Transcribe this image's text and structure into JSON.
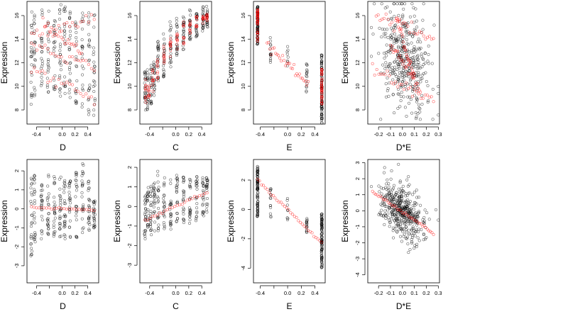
{
  "chart_data": [
    {
      "type": "scatter",
      "panel": "top-1",
      "xlabel": "D",
      "ylabel": "Expression",
      "xlim": [
        -0.55,
        0.57
      ],
      "ylim": [
        6.8,
        17.2
      ],
      "xticks": [
        -0.4,
        -0.2,
        0.0,
        0.2,
        0.4
      ],
      "xtick_labels": [
        "-0.4",
        "",
        "0.0",
        "0.2",
        "0.4"
      ],
      "yticks": [
        8,
        10,
        12,
        14,
        16
      ],
      "ytick_labels": [
        "8",
        "10",
        "12",
        "14",
        "16"
      ],
      "series": [
        {
          "color": "#000000",
          "gen": {
            "kind": "cols",
            "x": [
              -0.48,
              -0.43,
              -0.32,
              -0.22,
              -0.12,
              -0.03,
              0.04,
              0.12,
              0.22,
              0.32,
              0.42,
              0.5
            ],
            "lo": [
              8,
              9,
              9.5,
              9.5,
              9,
              9,
              9,
              9,
              8.5,
              8,
              7.5,
              7.5
            ],
            "hi": [
              16.5,
              16.5,
              16.5,
              16.5,
              16.5,
              17,
              17,
              16.5,
              16.5,
              16.5,
              16.5,
              16.5
            ],
            "n": 22,
            "jx": 0.012,
            "seed": 11
          }
        },
        {
          "color": "#ff0000",
          "gen": {
            "kind": "lines",
            "lines": [
              {
                "x0": -0.48,
                "x1": 0.5,
                "y0": 14.2,
                "y1": 15.8
              },
              {
                "x0": -0.48,
                "x1": 0.5,
                "y0": 11.5,
                "y1": 8.9
              },
              {
                "x0": -0.48,
                "x1": 0.5,
                "y0": 13.6,
                "y1": 11.5
              },
              {
                "x0": -0.3,
                "x1": 0.3,
                "y0": 15.3,
                "y1": 13.0
              }
            ],
            "n": 24,
            "jitter": 0.22,
            "seed": 12
          }
        }
      ]
    },
    {
      "type": "scatter",
      "panel": "top-2",
      "xlabel": "C",
      "ylabel": "Expression",
      "xlim": [
        -0.55,
        0.55
      ],
      "ylim": [
        6.8,
        17.2
      ],
      "xticks": [
        -0.4,
        -0.2,
        0.0,
        0.2,
        0.4
      ],
      "xtick_labels": [
        "-0.4",
        "",
        "0.0",
        "0.2",
        "0.4"
      ],
      "yticks": [
        8,
        10,
        12,
        14,
        16
      ],
      "ytick_labels": [
        "8",
        "10",
        "12",
        "14",
        "16"
      ],
      "series": [
        {
          "color": "#000000",
          "gen": {
            "kind": "cols",
            "x": [
              -0.47,
              -0.43,
              -0.38,
              -0.33,
              -0.27,
              -0.18,
              -0.08,
              0.02,
              0.12,
              0.22,
              0.32,
              0.42,
              0.48
            ],
            "lo": [
              7.8,
              8,
              8.5,
              9,
              10,
              10.5,
              11.5,
              12.5,
              13,
              13.5,
              14,
              14.5,
              15
            ],
            "hi": [
              11.5,
              11.5,
              12,
              12.5,
              14,
              14.5,
              15.5,
              16,
              16,
              16.5,
              16.5,
              16.8,
              16.8
            ],
            "n": 22,
            "jx": 0.01,
            "seed": 21
          }
        },
        {
          "color": "#ff0000",
          "gen": {
            "kind": "cols",
            "x": [
              -0.46,
              -0.41,
              -0.35,
              -0.28,
              -0.18,
              -0.08,
              0.02,
              0.12,
              0.22,
              0.32,
              0.42,
              0.48
            ],
            "lo": [
              8.6,
              9,
              9.5,
              10.5,
              11.5,
              12.5,
              13,
              13.5,
              14.5,
              15,
              15,
              15.4
            ],
            "hi": [
              10.8,
              11.2,
              11.8,
              12.5,
              13.5,
              14.5,
              15,
              15.5,
              15.8,
              16,
              16,
              16.2
            ],
            "n": 10,
            "jx": 0.006,
            "seed": 22
          }
        }
      ]
    },
    {
      "type": "scatter",
      "panel": "top-3",
      "xlabel": "E",
      "ylabel": "Expression",
      "xlim": [
        -0.5,
        0.55
      ],
      "ylim": [
        6.8,
        17.2
      ],
      "xticks": [
        -0.4,
        -0.2,
        0.0,
        0.2,
        0.4
      ],
      "xtick_labels": [
        "-0.4",
        "",
        "0.0",
        "0.2",
        "0.4"
      ],
      "yticks": [
        8,
        10,
        12,
        14,
        16
      ],
      "ytick_labels": [
        "8",
        "10",
        "12",
        "14",
        "16"
      ],
      "series": [
        {
          "color": "#000000",
          "gen": {
            "kind": "cols",
            "x": [
              -0.44,
              -0.25,
              0.0,
              0.28,
              0.5
            ],
            "lo": [
              13.5,
              12,
              11.5,
              9.5,
              6.8
            ],
            "hi": [
              16.8,
              14.5,
              14.2,
              12,
              12.8
            ],
            "n": [
              90,
              14,
              8,
              16,
              100
            ],
            "jx": 0.006,
            "seed": 31
          }
        },
        {
          "color": "#ff0000",
          "gen": {
            "kind": "lines",
            "lines": [
              {
                "x0": -0.3,
                "x1": 0.3,
                "y0": 13.6,
                "y1": 10.2
              }
            ],
            "n": 30,
            "jitter": 0.2,
            "seed": 32
          }
        },
        {
          "color": "#ff0000",
          "gen": {
            "kind": "cols",
            "x": [
              -0.44,
              0.5
            ],
            "lo": [
              13.8,
              8.5
            ],
            "hi": [
              16.5,
              11.5
            ],
            "n": [
              40,
              40
            ],
            "jx": 0.002,
            "seed": 33
          }
        }
      ]
    },
    {
      "type": "scatter",
      "panel": "top-4",
      "xlabel": "D*E",
      "ylabel": "Expression",
      "xlim": [
        -0.29,
        0.31
      ],
      "ylim": [
        6.8,
        17.2
      ],
      "xticks": [
        -0.2,
        -0.1,
        0.0,
        0.1,
        0.2,
        0.3
      ],
      "xtick_labels": [
        "-0.2",
        "-0.1",
        "0.0",
        "0.1",
        "0.2",
        "0.3"
      ],
      "yticks": [
        8,
        10,
        12,
        14,
        16
      ],
      "ytick_labels": [
        "8",
        "10",
        "12",
        "14",
        "16"
      ],
      "series": [
        {
          "color": "#000000",
          "gen": {
            "kind": "cloud",
            "cx": 0.02,
            "cy": 12.5,
            "sx": 0.1,
            "sy": 2.4,
            "slope": -5,
            "n": 380,
            "xlim": [
              -0.26,
              0.3
            ],
            "ylim": [
              7.2,
              17.0
            ],
            "seed": 41
          }
        },
        {
          "color": "#ff0000",
          "gen": {
            "kind": "lines",
            "lines": [
              {
                "x0": -0.22,
                "x1": 0.26,
                "y0": 16.2,
                "y1": 14.0
              },
              {
                "x0": -0.25,
                "x1": 0.26,
                "y0": 11.4,
                "y1": 8.8
              },
              {
                "x0": -0.05,
                "x1": 0.1,
                "y0": 15.8,
                "y1": 10.6
              },
              {
                "x0": -0.1,
                "x1": 0.15,
                "y0": 13.6,
                "y1": 9.8
              }
            ],
            "n": 30,
            "jitter": 0.25,
            "seed": 42
          }
        }
      ]
    },
    {
      "type": "scatter",
      "panel": "bottom-1",
      "xlabel": "D",
      "ylabel": "Expression",
      "xlim": [
        -0.55,
        0.57
      ],
      "ylim": [
        -3.9,
        2.6
      ],
      "xticks": [
        -0.4,
        -0.2,
        0.0,
        0.2,
        0.4
      ],
      "xtick_labels": [
        "-0.4",
        "",
        "0.0",
        "0.2",
        "0.4"
      ],
      "yticks": [
        -3,
        -2,
        -1,
        0,
        1,
        2
      ],
      "ytick_labels": [
        "-3",
        "-2",
        "-1",
        "0",
        "1",
        "2"
      ],
      "series": [
        {
          "color": "#000000",
          "gen": {
            "kind": "cols",
            "x": [
              -0.48,
              -0.43,
              -0.32,
              -0.22,
              -0.12,
              -0.03,
              0.04,
              0.12,
              0.22,
              0.32,
              0.42,
              0.5
            ],
            "lo": [
              -2.8,
              -1.8,
              -1.6,
              -1.5,
              -1.6,
              -1.5,
              -1.6,
              -1.5,
              -1.6,
              -1.4,
              -1.2,
              -1.0
            ],
            "hi": [
              1.7,
              1.8,
              1.6,
              2.0,
              1.8,
              1.8,
              1.5,
              1.5,
              2.0,
              2.4,
              1.5,
              0.6
            ],
            "n": 24,
            "jx": 0.012,
            "seed": 51
          }
        },
        {
          "color": "#ff0000",
          "gen": {
            "kind": "lines",
            "lines": [
              {
                "x0": -0.48,
                "x1": 0.5,
                "y0": 0.08,
                "y1": -0.05
              }
            ],
            "n": 26,
            "jitter": 0.02,
            "seed": 52
          }
        }
      ]
    },
    {
      "type": "scatter",
      "panel": "bottom-2",
      "xlabel": "C",
      "ylabel": "Expression",
      "xlim": [
        -0.55,
        0.55
      ],
      "ylim": [
        -3.9,
        2.4
      ],
      "xticks": [
        -0.4,
        -0.2,
        0.0,
        0.2,
        0.4
      ],
      "xtick_labels": [
        "-0.4",
        "",
        "0.0",
        "0.2",
        "0.4"
      ],
      "yticks": [
        -3,
        -2,
        -1,
        0,
        1,
        2
      ],
      "ytick_labels": [
        "-3",
        "-2",
        "-1",
        "0",
        "1",
        "2"
      ],
      "series": [
        {
          "color": "#000000",
          "gen": {
            "kind": "cols",
            "x": [
              -0.47,
              -0.43,
              -0.38,
              -0.33,
              -0.27,
              -0.18,
              -0.08,
              0.02,
              0.12,
              0.22,
              0.32,
              0.42,
              0.48
            ],
            "lo": [
              -1.8,
              -1.6,
              -1.5,
              -1.4,
              -1.3,
              -1.3,
              -1.2,
              -1.0,
              -1.0,
              -0.9,
              -0.8,
              -0.5,
              -0.4
            ],
            "hi": [
              0.9,
              1.0,
              1.1,
              1.2,
              1.9,
              1.7,
              1.5,
              1.6,
              1.6,
              1.5,
              1.6,
              1.5,
              1.5
            ],
            "n": 22,
            "jx": 0.01,
            "seed": 61
          }
        },
        {
          "color": "#ff0000",
          "gen": {
            "kind": "lines",
            "lines": [
              {
                "x0": -0.47,
                "x1": 0.48,
                "y0": -0.7,
                "y1": 0.72
              }
            ],
            "n": 26,
            "jitter": 0.04,
            "seed": 62
          }
        }
      ]
    },
    {
      "type": "scatter",
      "panel": "bottom-3",
      "xlabel": "E",
      "ylabel": "Expression",
      "xlim": [
        -0.5,
        0.55
      ],
      "ylim": [
        -5.0,
        3.4
      ],
      "xticks": [
        -0.4,
        -0.2,
        0.0,
        0.2,
        0.4
      ],
      "xtick_labels": [
        "-0.4",
        "",
        "0.0",
        "0.2",
        "0.4"
      ],
      "yticks": [
        -4,
        -2,
        0,
        2
      ],
      "ytick_labels": [
        "-4",
        "-2",
        "0",
        "2"
      ],
      "series": [
        {
          "color": "#000000",
          "gen": {
            "kind": "cols",
            "x": [
              -0.44,
              -0.25,
              0.0,
              0.28,
              0.5
            ],
            "lo": [
              -0.5,
              -0.6,
              -0.8,
              -1.6,
              -4.0
            ],
            "hi": [
              3.0,
              1.5,
              0.8,
              -0.5,
              -0.3
            ],
            "n": [
              90,
              14,
              8,
              16,
              100
            ],
            "jx": 0.006,
            "seed": 71
          }
        },
        {
          "color": "#ff0000",
          "gen": {
            "kind": "lines",
            "lines": [
              {
                "x0": -0.44,
                "x1": 0.5,
                "y0": 2.0,
                "y1": -2.3
              }
            ],
            "n": 34,
            "jitter": 0.06,
            "seed": 72
          }
        }
      ]
    },
    {
      "type": "scatter",
      "panel": "bottom-4",
      "xlabel": "D*E",
      "ylabel": "Expression",
      "xlim": [
        -0.29,
        0.31
      ],
      "ylim": [
        -4.5,
        3.2
      ],
      "xticks": [
        -0.2,
        -0.1,
        0.0,
        0.1,
        0.2,
        0.3
      ],
      "xtick_labels": [
        "-0.2",
        "-0.1",
        "0.0",
        "0.1",
        "0.2",
        "0.3"
      ],
      "yticks": [
        -4,
        -3,
        -2,
        -1,
        0,
        1,
        2,
        3
      ],
      "ytick_labels": [
        "-4",
        "-3",
        "-2",
        "-1",
        "0",
        "1",
        "2",
        "3"
      ],
      "series": [
        {
          "color": "#000000",
          "gen": {
            "kind": "cloud",
            "cx": 0.0,
            "cy": 0.0,
            "sx": 0.09,
            "sy": 0.8,
            "slope": -5.2,
            "n": 420,
            "xlim": [
              -0.26,
              0.3
            ],
            "ylim": [
              -4.2,
              2.9
            ],
            "seed": 81
          }
        },
        {
          "color": "#ff0000",
          "gen": {
            "kind": "lines",
            "lines": [
              {
                "x0": -0.25,
                "x1": 0.26,
                "y0": 1.2,
                "y1": -1.4
              }
            ],
            "n": 40,
            "jitter": 0.05,
            "seed": 82
          }
        }
      ]
    }
  ]
}
